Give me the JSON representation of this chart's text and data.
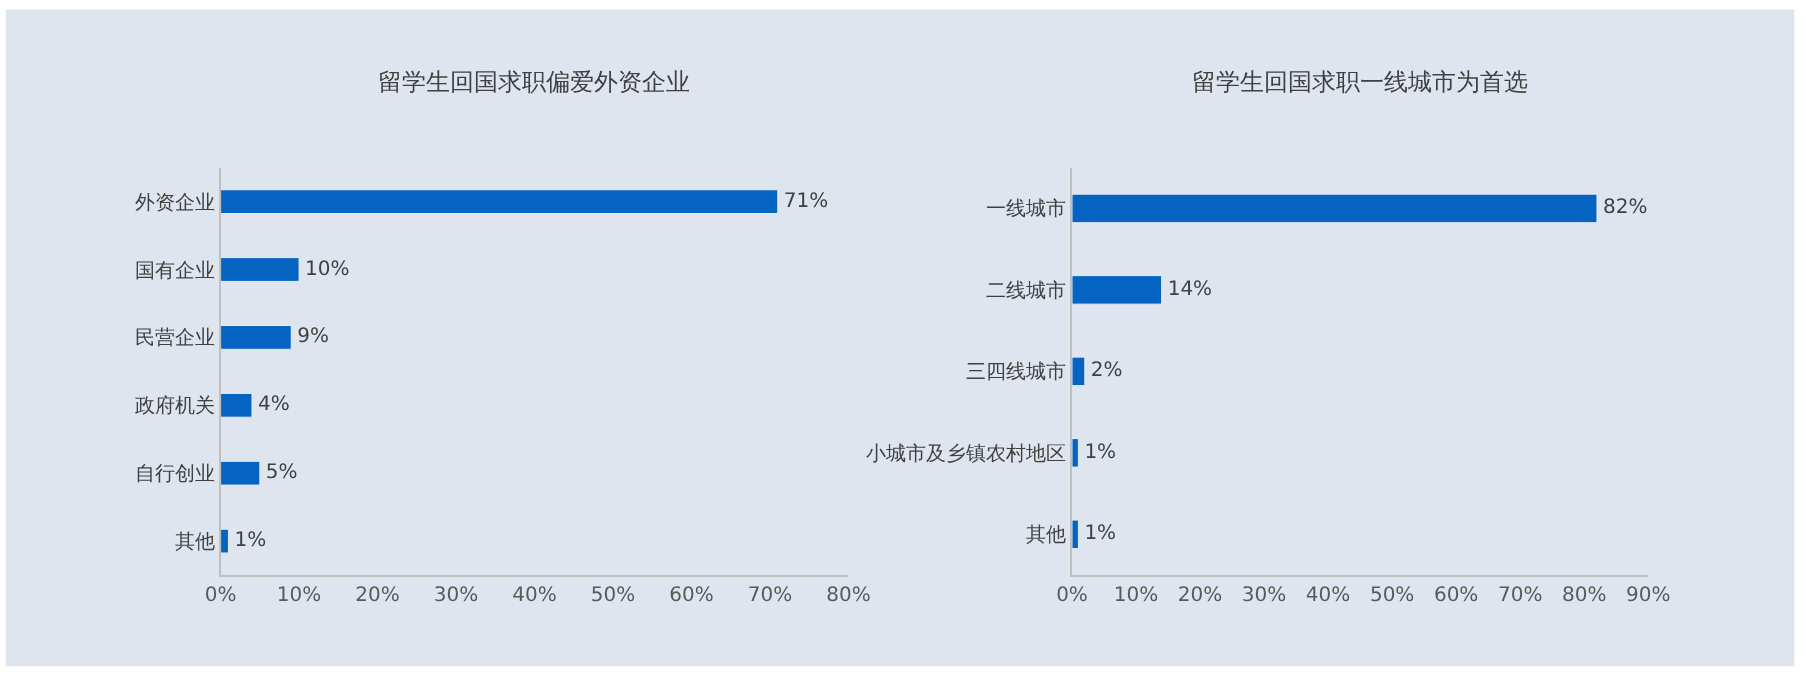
{
  "chart_data": [
    {
      "type": "bar",
      "orientation": "horizontal",
      "title": "留学生回国求职偏爱外资企业",
      "categories": [
        "外资企业",
        "国有企业",
        "民营企业",
        "政府机关",
        "自行创业",
        "其他"
      ],
      "series": [
        {
          "color": "#0563c1",
          "values": [
            71,
            10,
            9,
            4,
            5,
            1
          ]
        }
      ],
      "value_labels": [
        "71%",
        "10%",
        "9%",
        "4%",
        "5%",
        "1%"
      ],
      "xlim": [
        0,
        80
      ],
      "xticks": [
        {
          "value": 0,
          "label": "0%"
        },
        {
          "value": 10,
          "label": "10%"
        },
        {
          "value": 20,
          "label": "20%"
        },
        {
          "value": 30,
          "label": "30%"
        },
        {
          "value": 40,
          "label": "40%"
        },
        {
          "value": 50,
          "label": "50%"
        },
        {
          "value": 60,
          "label": "60%"
        },
        {
          "value": 70,
          "label": "70%"
        },
        {
          "value": 80,
          "label": "80%"
        }
      ],
      "grid": false
    },
    {
      "type": "bar",
      "orientation": "horizontal",
      "title": "留学生回国求职一线城市为首选",
      "categories": [
        "一线城市",
        "二线城市",
        "三四线城市",
        "小城市及乡镇农村地区",
        "其他"
      ],
      "series": [
        {
          "color": "#0563c1",
          "values": [
            82,
            14,
            2,
            1,
            1
          ]
        }
      ],
      "value_labels": [
        "82%",
        "14%",
        "2%",
        "1%",
        "1%"
      ],
      "xlim": [
        0,
        90
      ],
      "xticks": [
        {
          "value": 0,
          "label": "0%"
        },
        {
          "value": 10,
          "label": "10%"
        },
        {
          "value": 20,
          "label": "20%"
        },
        {
          "value": 30,
          "label": "30%"
        },
        {
          "value": 40,
          "label": "40%"
        },
        {
          "value": 50,
          "label": "50%"
        },
        {
          "value": 60,
          "label": "60%"
        },
        {
          "value": 70,
          "label": "70%"
        },
        {
          "value": 80,
          "label": "80%"
        },
        {
          "value": 90,
          "label": "90%"
        }
      ],
      "grid": false
    }
  ]
}
